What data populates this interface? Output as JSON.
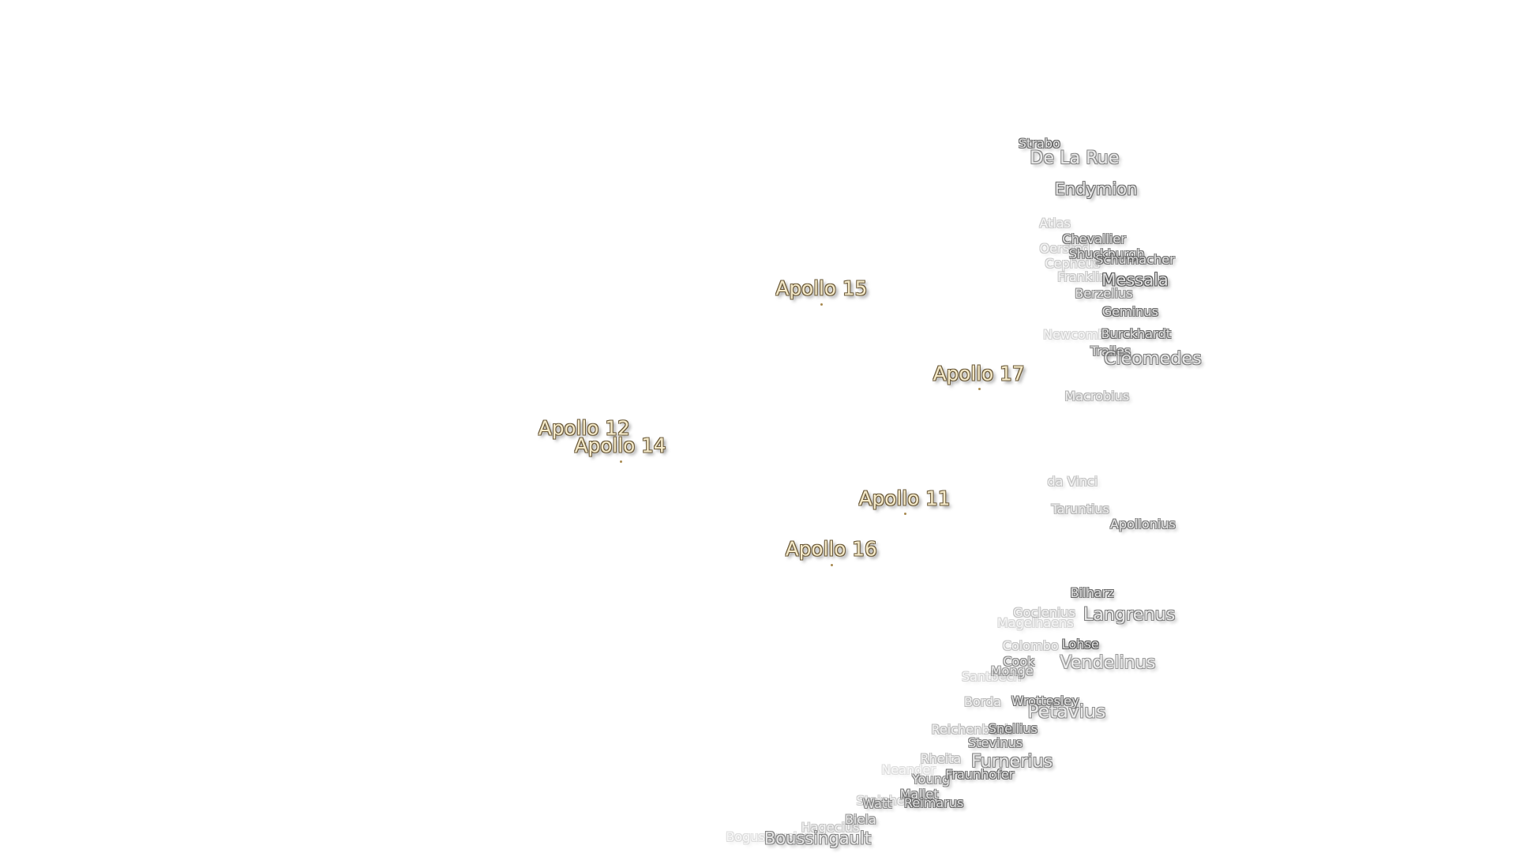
{
  "apollo_sites": [
    "Apollo 15",
    "Apollo 17",
    "Apollo 12",
    "Apollo 14",
    "Apollo 11",
    "Apollo 16"
  ],
  "craters": [
    "Strabo",
    "De La Rue",
    "Endymion",
    "Atlas",
    "Chevallier",
    "Oersted",
    "Shuckburgh",
    "Schumacher",
    "Cepheus",
    "Franklin",
    "Messala",
    "Berzelius",
    "Geminus",
    "Newcomb",
    "Burckhardt",
    "Tralles",
    "Cleomedes",
    "Macrobius",
    "da Vinci",
    "Taruntius",
    "Apollonius",
    "Bilharz",
    "Goclenius",
    "Magelhaens",
    "Langrenus",
    "Colombo",
    "Lohse",
    "Cook",
    "Vendelinus",
    "Monge",
    "Santbech",
    "Borda",
    "Wrottesley",
    "Petavius",
    "Reichenbach",
    "Snellius",
    "Stevinus",
    "Rheita",
    "Furnerius",
    "Neander",
    "Young",
    "Fraunhofer",
    "Mallet",
    "Steinheil",
    "Watt",
    "Reimarus",
    "Biela",
    "Hagecius",
    "Boguslawsky",
    "Boussingault"
  ]
}
